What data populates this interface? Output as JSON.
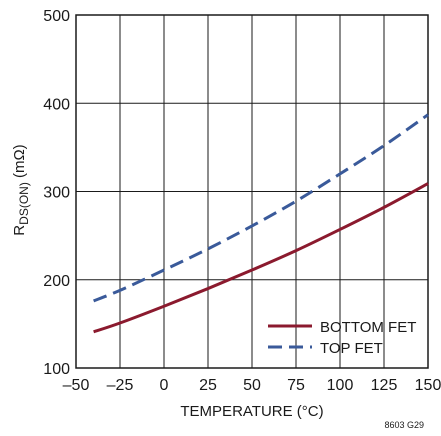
{
  "chart_data": {
    "type": "line",
    "title": "",
    "xlabel": "TEMPERATURE (°C)",
    "ylabel_main": "R",
    "ylabel_sub": "DS(ON)",
    "ylabel_unit": " (mΩ)",
    "xlim": [
      -50,
      150
    ],
    "ylim": [
      100,
      500
    ],
    "x_ticks": [
      -50,
      -25,
      0,
      25,
      50,
      75,
      100,
      125,
      150
    ],
    "x_tick_labels": [
      "–50",
      "–25",
      "0",
      "25",
      "50",
      "75",
      "100",
      "125",
      "150"
    ],
    "y_ticks": [
      100,
      200,
      300,
      400,
      500
    ],
    "y_tick_labels": [
      "100",
      "200",
      "300",
      "400",
      "500"
    ],
    "grid": true,
    "legend_position": "bottom-right",
    "figure_id": "8603 G29",
    "series": [
      {
        "name": "BOTTOM FET",
        "color": "#8b1a2e",
        "dash": "solid",
        "x": [
          -40,
          -25,
          0,
          25,
          50,
          75,
          100,
          125,
          150
        ],
        "y": [
          141,
          151,
          170,
          190,
          211,
          233,
          257,
          282,
          309
        ]
      },
      {
        "name": "TOP FET",
        "color": "#3a5a9a",
        "dash": "dashed",
        "x": [
          -40,
          -25,
          0,
          25,
          50,
          75,
          100,
          125,
          150
        ],
        "y": [
          176,
          188,
          211,
          235,
          261,
          289,
          320,
          352,
          387
        ]
      }
    ]
  }
}
